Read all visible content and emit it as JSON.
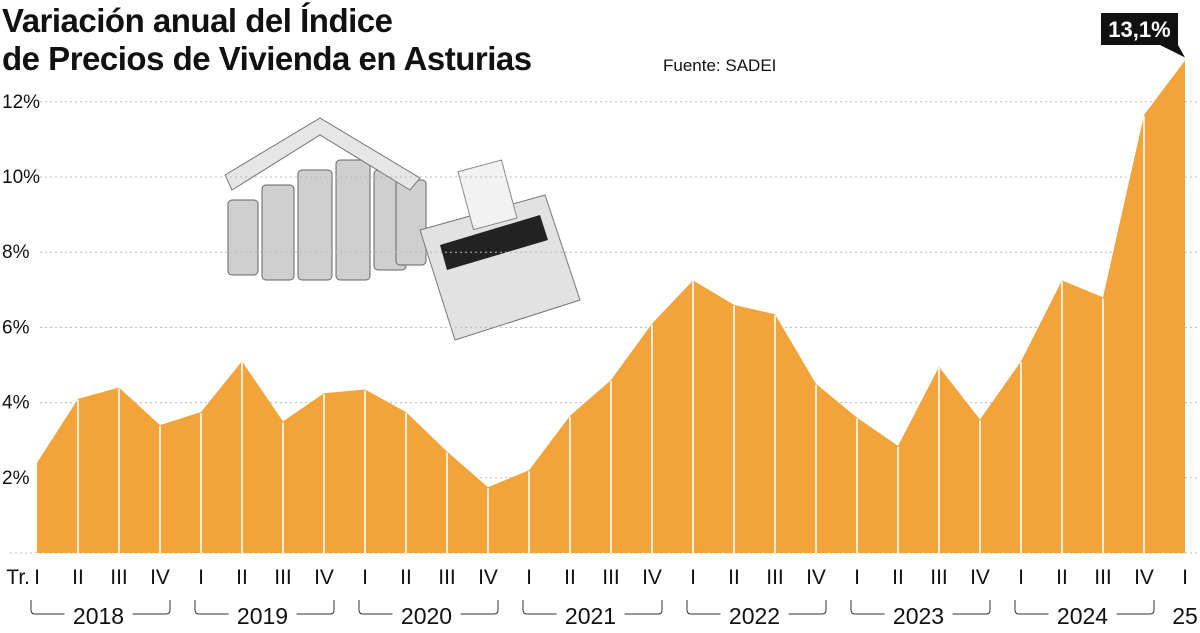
{
  "chart_data": {
    "type": "area",
    "title": "Variación anual del Índice de Precios de Vivienda en Asturias",
    "title_lines": [
      "Variación anual del Índice",
      "de Precios de Vivienda en Asturias"
    ],
    "source": "Fuente: SADEI",
    "quarter_prefix": "Tr.",
    "categories": [
      "I",
      "II",
      "III",
      "IV",
      "I",
      "II",
      "III",
      "IV",
      "I",
      "II",
      "III",
      "IV",
      "I",
      "II",
      "III",
      "IV",
      "I",
      "II",
      "III",
      "IV",
      "I",
      "II",
      "III",
      "IV",
      "I",
      "II",
      "III",
      "IV",
      "I"
    ],
    "years": [
      {
        "label": "2018",
        "quarters": 4
      },
      {
        "label": "2019",
        "quarters": 4
      },
      {
        "label": "2020",
        "quarters": 4
      },
      {
        "label": "2021",
        "quarters": 4
      },
      {
        "label": "2022",
        "quarters": 4
      },
      {
        "label": "2023",
        "quarters": 4
      },
      {
        "label": "2024",
        "quarters": 4
      },
      {
        "label": "25",
        "quarters": 1
      }
    ],
    "values": [
      2.4,
      4.1,
      4.4,
      3.4,
      3.75,
      5.1,
      3.5,
      4.25,
      4.35,
      3.75,
      2.7,
      1.75,
      2.2,
      3.65,
      4.6,
      6.1,
      7.25,
      6.6,
      6.35,
      4.5,
      3.6,
      2.85,
      4.95,
      3.55,
      5.1,
      7.25,
      6.8,
      11.65,
      13.1
    ],
    "callout": {
      "index": 28,
      "label": "13,1%"
    },
    "yticks": [
      2,
      4,
      6,
      8,
      10,
      12
    ],
    "ytick_labels": [
      "2%",
      "4%",
      "6%",
      "8%",
      "10%",
      "12%"
    ],
    "ylim": [
      0,
      13.1
    ],
    "grid": true,
    "colors": {
      "area": "#f2a33a",
      "separator": "#ffffff",
      "grid": "#bbbbbb",
      "callout": "#111111"
    }
  }
}
